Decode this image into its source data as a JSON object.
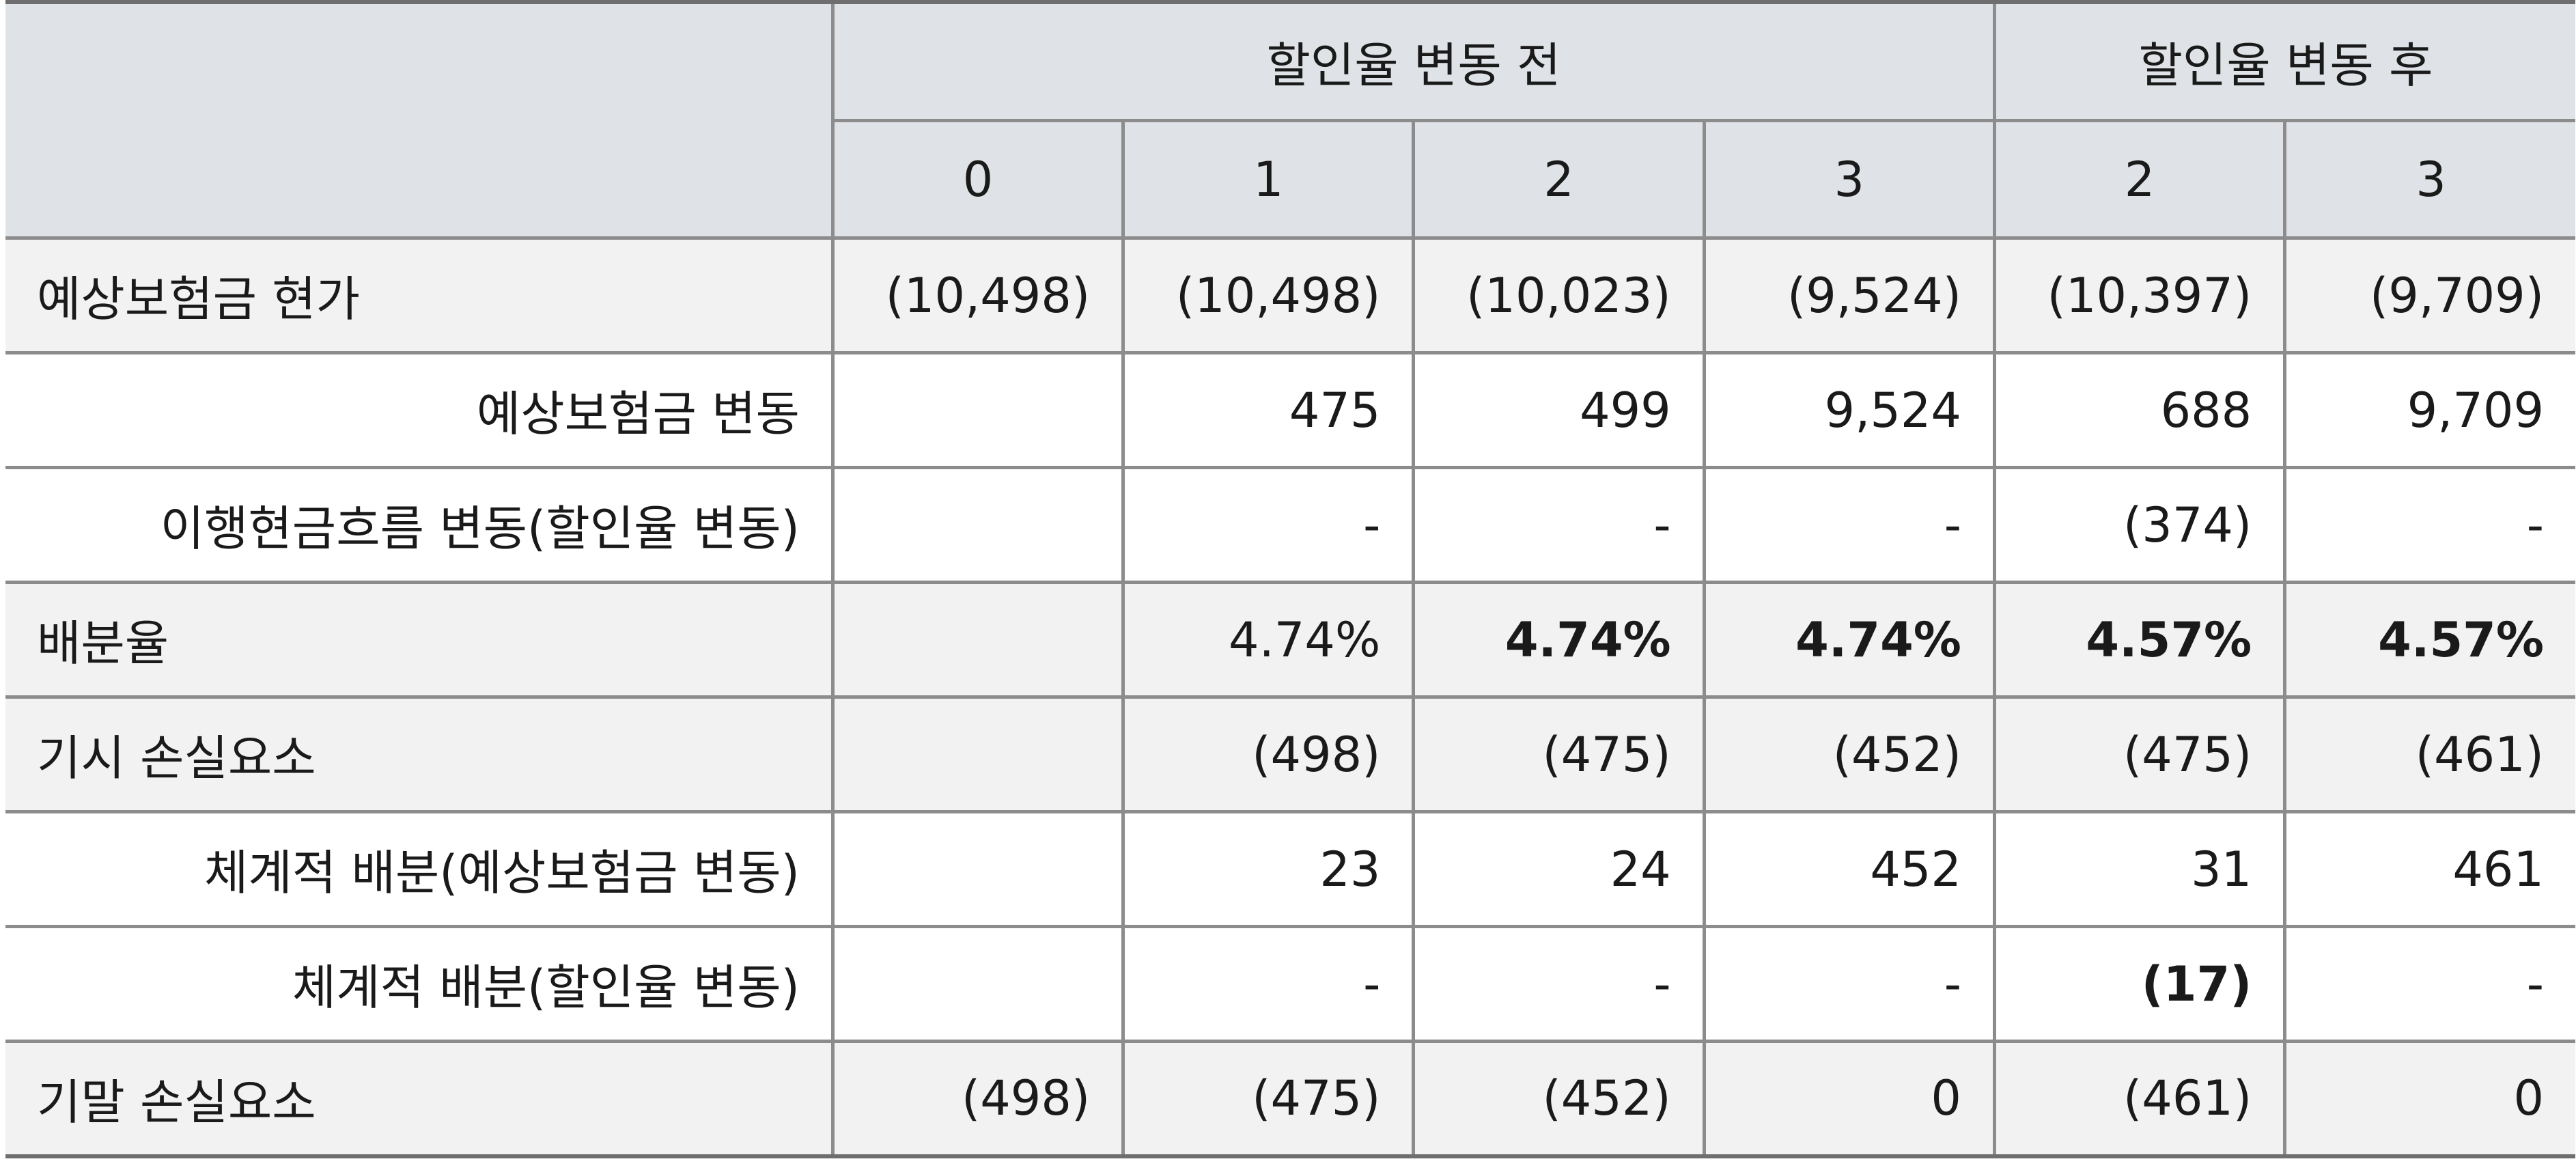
{
  "header": {
    "group_before": "할인율 변동 전",
    "group_after": "할인율 변동 후",
    "periods": [
      "0",
      "1",
      "2",
      "3",
      "2",
      "3"
    ]
  },
  "rows": [
    {
      "label": "예상보험금 현가",
      "cells": [
        "(10,498)",
        "(10,498)",
        "(10,023)",
        "(9,524)",
        "(10,397)",
        "(9,709)"
      ]
    },
    {
      "label": "예상보험금 변동",
      "cells": [
        "",
        "475",
        "499",
        "9,524",
        "688",
        "9,709"
      ]
    },
    {
      "label": "이행현금흐름 변동(할인율 변동)",
      "cells": [
        "",
        "-",
        "-",
        "-",
        "(374)",
        "-"
      ]
    },
    {
      "label": "배분율",
      "cells": [
        "",
        "4.74%",
        "4.74%",
        "4.74%",
        "4.57%",
        "4.57%"
      ]
    },
    {
      "label": "기시 손실요소",
      "cells": [
        "",
        "(498)",
        "(475)",
        "(452)",
        "(475)",
        "(461)"
      ]
    },
    {
      "label": "체계적 배분(예상보험금 변동)",
      "cells": [
        "",
        "23",
        "24",
        "452",
        "31",
        "461"
      ]
    },
    {
      "label": "체계적 배분(할인율 변동)",
      "cells": [
        "",
        "-",
        "-",
        "-",
        "(17)",
        "-"
      ]
    },
    {
      "label": "기말 손실요소",
      "cells": [
        "(498)",
        "(475)",
        "(452)",
        "0",
        "(461)",
        "0"
      ]
    }
  ]
}
